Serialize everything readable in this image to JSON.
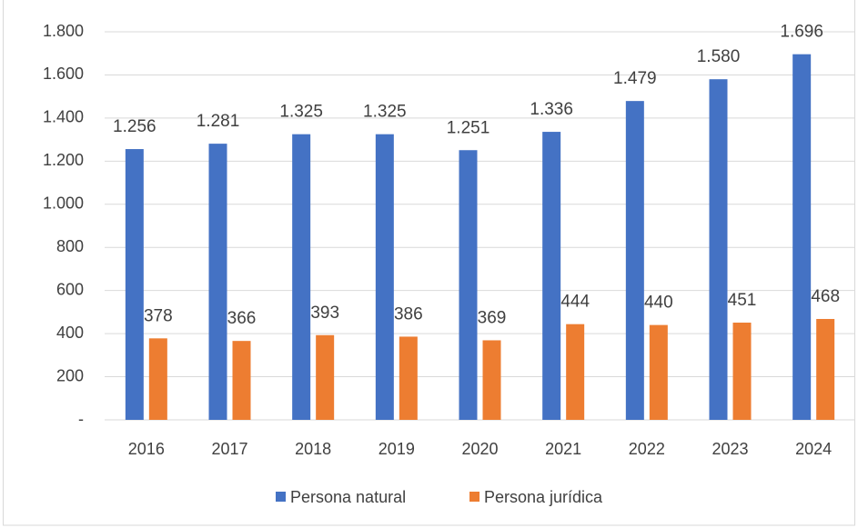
{
  "chart_data": {
    "type": "bar",
    "categories": [
      "2016",
      "2017",
      "2018",
      "2019",
      "2020",
      "2021",
      "2022",
      "2023",
      "2024"
    ],
    "series": [
      {
        "name": "Persona natural",
        "color": "#4472c4",
        "values": [
          1256,
          1281,
          1325,
          1325,
          1251,
          1336,
          1479,
          1580,
          1696
        ],
        "value_labels": [
          "1.256",
          "1.281",
          "1.325",
          "1.325",
          "1.251",
          "1.336",
          "1.479",
          "1.580",
          "1.696"
        ]
      },
      {
        "name": "Persona jurídica",
        "color": "#ed7d31",
        "values": [
          378,
          366,
          393,
          386,
          369,
          444,
          440,
          451,
          468
        ]
      }
    ],
    "ylim": [
      0,
      1800
    ],
    "yticks": [
      {
        "value": 0,
        "label": "-"
      },
      200,
      400,
      600,
      800,
      {
        "value": 1000,
        "label": "1.000"
      },
      {
        "value": 1200,
        "label": "1.200"
      },
      {
        "value": 1400,
        "label": "1.400"
      },
      {
        "value": 1600,
        "label": "1.600"
      },
      {
        "value": 1800,
        "label": "1.800"
      }
    ],
    "grid": true,
    "legend": "bottom"
  }
}
